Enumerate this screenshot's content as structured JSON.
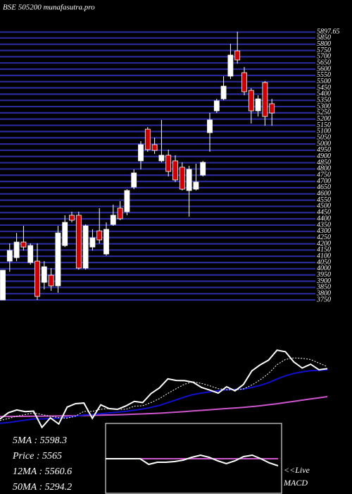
{
  "chart_data": [
    {
      "type": "candlestick",
      "title": "BSE 505200 munafasutra.pro",
      "open": [
        3750,
        4061,
        4089,
        4214,
        4050,
        4061,
        3891,
        3948,
        3863,
        4186,
        4429,
        4429,
        4005,
        4174,
        4304,
        4118,
        4355,
        4486,
        4457,
        4655,
        4865,
        5119,
        4995,
        4865,
        4910,
        4865,
        4814,
        4627,
        4638,
        4751,
        5091,
        5266,
        5362,
        5544,
        5747,
        5572,
        5430,
        5266,
        5493,
        5323
      ],
      "high": [
        3988,
        4203,
        4287,
        4344,
        4203,
        4203,
        4061,
        4005,
        4344,
        4429,
        4457,
        4457,
        4355,
        4316,
        4486,
        4372,
        4514,
        4542,
        4638,
        4797,
        5023,
        5136,
        5051,
        5193,
        4955,
        4910,
        4853,
        4825,
        4842,
        4865,
        5249,
        5362,
        5544,
        5804,
        5900,
        5617,
        5447,
        5391,
        5504,
        5362
      ],
      "low": [
        3750,
        3976,
        4061,
        4146,
        4033,
        3750,
        3835,
        3823,
        3807,
        4174,
        4372,
        3993,
        3993,
        4146,
        4203,
        4106,
        4344,
        4389,
        4429,
        4638,
        4797,
        4938,
        4921,
        4853,
        4740,
        4695,
        4627,
        4418,
        4627,
        4740,
        4938,
        5249,
        5351,
        5521,
        5645,
        5391,
        5164,
        5221,
        5147,
        5147
      ],
      "close": [
        3988,
        4146,
        4214,
        4174,
        4186,
        3778,
        4016,
        3863,
        4287,
        4372,
        4389,
        4005,
        4344,
        4248,
        4231,
        4316,
        4429,
        4401,
        4627,
        4768,
        4995,
        4955,
        4949,
        4910,
        4780,
        4712,
        4638,
        4797,
        4695,
        4853,
        5193,
        5346,
        5464,
        5713,
        5674,
        5419,
        5266,
        5362,
        5221,
        5249
      ],
      "up_color": "#ffffff",
      "down_color": "#cc0000",
      "ylim": [
        3750,
        5900
      ],
      "yticks": [
        5897.65,
        5850,
        5800,
        5750,
        5700,
        5650,
        5600,
        5550,
        5500,
        5450,
        5400,
        5350,
        5300,
        5250,
        5200,
        5150,
        5100,
        5050,
        5000,
        4950,
        4900,
        4850,
        4800,
        4750,
        4700,
        4650,
        4600,
        4550,
        4500,
        4450,
        4400,
        4350,
        4300,
        4250,
        4200,
        4150,
        4100,
        4050,
        4000,
        3950,
        3900,
        3850,
        3800,
        3750
      ],
      "grid": true,
      "grid_color": "#2a2a9a"
    },
    {
      "type": "line",
      "ylim": [
        3700,
        6000
      ],
      "series": [
        {
          "color": "#ffffff",
          "style": "solid",
          "values": [
            3988,
            4146,
            4214,
            4174,
            4186,
            3778,
            4016,
            3863,
            4287,
            4372,
            4389,
            4005,
            4344,
            4248,
            4231,
            4316,
            4429,
            4401,
            4627,
            4768,
            4995,
            4955,
            4949,
            4910,
            4780,
            4712,
            4638,
            4797,
            4695,
            4853,
            5193,
            5346,
            5464,
            5713,
            5674,
            5419,
            5266,
            5362,
            5221,
            5249
          ]
        },
        {
          "color": "#ffffff",
          "style": "dotted",
          "values": [
            3950,
            4000,
            4060,
            4100,
            4140,
            4100,
            4060,
            4020,
            4010,
            4060,
            4180,
            4180,
            4230,
            4250,
            4230,
            4230,
            4310,
            4320,
            4400,
            4500,
            4630,
            4750,
            4860,
            4920,
            4880,
            4820,
            4750,
            4720,
            4720,
            4740,
            4840,
            4970,
            5130,
            5350,
            5480,
            5520,
            5510,
            5480,
            5390,
            5300
          ]
        },
        {
          "color": "#1010cc",
          "style": "solid",
          "values": [
            3880,
            3900,
            3930,
            3960,
            3990,
            3990,
            4000,
            4010,
            4030,
            4060,
            4090,
            4100,
            4120,
            4140,
            4160,
            4180,
            4210,
            4240,
            4280,
            4330,
            4400,
            4470,
            4540,
            4600,
            4640,
            4670,
            4700,
            4720,
            4730,
            4740,
            4780,
            4830,
            4900,
            4990,
            5070,
            5130,
            5170,
            5200,
            5210,
            5220
          ]
        },
        {
          "color": "#cc55cc",
          "style": "solid",
          "values": [
            4050,
            4052,
            4054,
            4056,
            4058,
            4060,
            4062,
            4064,
            4066,
            4070,
            4075,
            4080,
            4085,
            4090,
            4095,
            4100,
            4108,
            4116,
            4124,
            4134,
            4146,
            4160,
            4175,
            4190,
            4205,
            4220,
            4235,
            4250,
            4265,
            4280,
            4300,
            4320,
            4345,
            4370,
            4400,
            4430,
            4460,
            4490,
            4520,
            4550
          ]
        }
      ],
      "info_lines": [
        "5MA : 5598.3",
        "Price  : 5565",
        "12MA : 5560.6",
        "50MA : 5294.2"
      ]
    },
    {
      "type": "line",
      "title": "MACD",
      "note": "<<Live",
      "ylim": [
        -50,
        50
      ],
      "series": [
        {
          "color": "#ffffff",
          "style": "solid",
          "values": [
            0,
            0,
            0,
            0,
            0,
            -8,
            -5,
            -5,
            -4,
            -2,
            2,
            5,
            2,
            -3,
            -7,
            -3,
            3,
            5,
            0,
            -6,
            -10
          ]
        },
        {
          "color": "#cc55cc",
          "style": "solid",
          "values": [
            0,
            0,
            0,
            0,
            0,
            0,
            0,
            0,
            0,
            0,
            0,
            0,
            0,
            0,
            0,
            0,
            0,
            0,
            0,
            0,
            0
          ]
        }
      ]
    }
  ]
}
